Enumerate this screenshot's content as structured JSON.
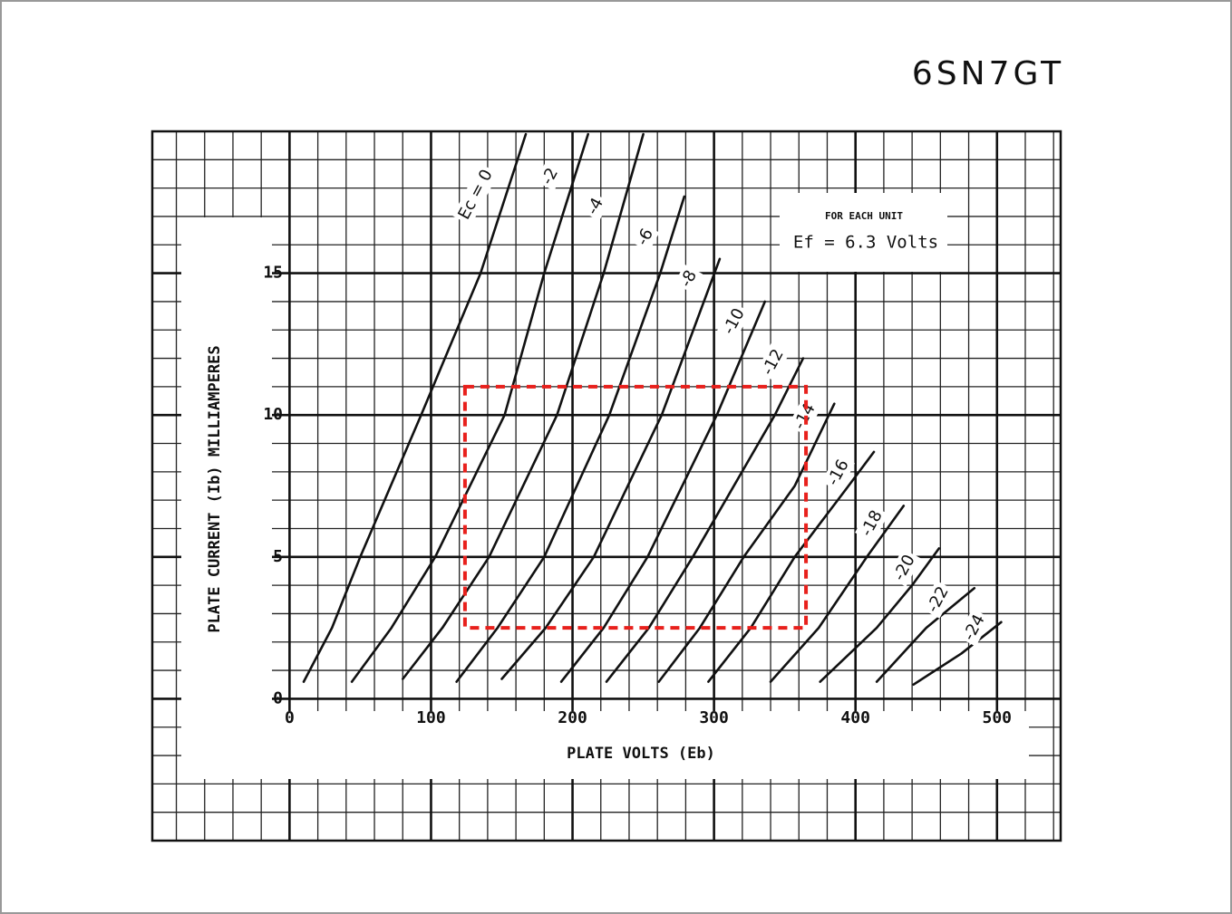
{
  "chart_data": {
    "type": "line",
    "title": "6SN7GT",
    "x_label": "PLATE VOLTS (Eb)",
    "y_label": "PLATE CURRENT (Ib) MILLIAMPERES",
    "annotation": {
      "heading": "FOR EACH UNIT",
      "text": "Ef = 6.3 Volts"
    },
    "xlim": [
      -97,
      545
    ],
    "ylim": [
      -5,
      20
    ],
    "xticks": [
      0,
      100,
      200,
      300,
      400,
      500
    ],
    "yticks": [
      0,
      5,
      10,
      15
    ],
    "grid": true,
    "highlight_box": {
      "x": [
        124,
        365
      ],
      "y": [
        2.5,
        11
      ],
      "color": "#e8201c"
    },
    "series": [
      {
        "name": "Ec = 0",
        "color": "#111111",
        "x": [
          10,
          30,
          50,
          93,
          135,
          167
        ],
        "values": [
          0.6,
          2.5,
          5,
          10,
          15,
          19.9
        ]
      },
      {
        "name": "-2",
        "color": "#111111",
        "x": [
          44,
          72,
          103,
          152,
          180,
          211
        ],
        "values": [
          0.6,
          2.5,
          5,
          10,
          15,
          19.9
        ]
      },
      {
        "name": "-4",
        "color": "#111111",
        "x": [
          80,
          108,
          141,
          189,
          222,
          250
        ],
        "values": [
          0.7,
          2.5,
          5,
          10,
          15,
          19.9
        ]
      },
      {
        "name": "-6",
        "color": "#111111",
        "x": [
          118,
          147,
          180,
          226,
          262,
          279
        ],
        "values": [
          0.6,
          2.5,
          5,
          10,
          15,
          17.7
        ]
      },
      {
        "name": "-8",
        "color": "#111111",
        "x": [
          150,
          181,
          215,
          263,
          304
        ],
        "values": [
          0.7,
          2.5,
          5,
          10,
          15.5
        ]
      },
      {
        "name": "-10",
        "color": "#111111",
        "x": [
          192,
          222,
          253,
          302,
          336
        ],
        "values": [
          0.6,
          2.5,
          5,
          10,
          14
        ]
      },
      {
        "name": "-12",
        "color": "#111111",
        "x": [
          224,
          254,
          285,
          343,
          363
        ],
        "values": [
          0.6,
          2.5,
          5,
          10,
          12
        ]
      },
      {
        "name": "-14",
        "color": "#111111",
        "x": [
          261,
          290,
          321,
          357,
          385
        ],
        "values": [
          0.6,
          2.5,
          5,
          7.5,
          10.4
        ]
      },
      {
        "name": "-16",
        "color": "#111111",
        "x": [
          296,
          326,
          357,
          395,
          413
        ],
        "values": [
          0.6,
          2.5,
          5,
          7.5,
          8.7
        ]
      },
      {
        "name": "-18",
        "color": "#111111",
        "x": [
          340,
          374,
          408,
          434
        ],
        "values": [
          0.6,
          2.5,
          5,
          6.8
        ]
      },
      {
        "name": "-20",
        "color": "#111111",
        "x": [
          375,
          415,
          440,
          459
        ],
        "values": [
          0.6,
          2.5,
          4,
          5.3
        ]
      },
      {
        "name": "-22",
        "color": "#111111",
        "x": [
          415,
          450,
          484
        ],
        "values": [
          0.6,
          2.5,
          3.9
        ]
      },
      {
        "name": "-24",
        "color": "#111111",
        "x": [
          441,
          475,
          503
        ],
        "values": [
          0.5,
          1.6,
          2.7
        ]
      }
    ]
  }
}
